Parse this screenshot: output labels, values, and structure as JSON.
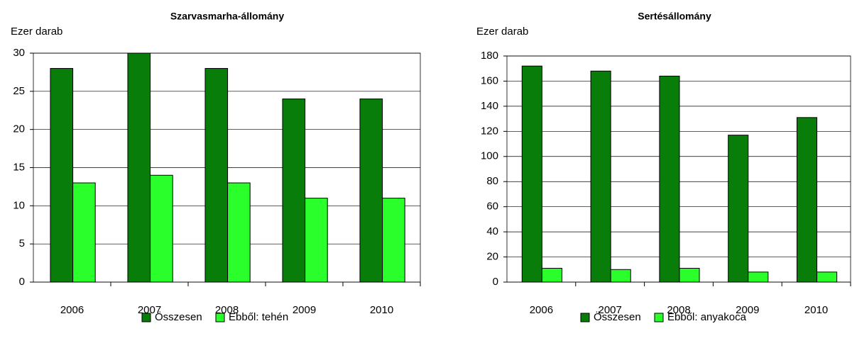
{
  "chart_data": [
    {
      "type": "bar",
      "title": "Szarvasmarha-állomány",
      "y_label": "Ezer darab",
      "categories": [
        "2006",
        "2007",
        "2008",
        "2009",
        "2010"
      ],
      "series": [
        {
          "name": "Összesen",
          "color": "#097d09",
          "values": [
            28,
            30,
            28,
            24,
            24
          ]
        },
        {
          "name": "Ebből: tehén",
          "color": "#2bff2b",
          "values": [
            13,
            14,
            13,
            11,
            11
          ]
        }
      ],
      "ylim": [
        0,
        30
      ],
      "yticks": [
        0,
        5,
        10,
        15,
        20,
        25,
        30
      ],
      "grid": true
    },
    {
      "type": "bar",
      "title": "Sertésállomány",
      "y_label": "Ezer darab",
      "categories": [
        "2006",
        "2007",
        "2008",
        "2009",
        "2010"
      ],
      "series": [
        {
          "name": "Összesen",
          "color": "#097d09",
          "values": [
            172,
            168,
            164,
            117,
            131
          ]
        },
        {
          "name": "Ebből: anyakoca",
          "color": "#2bff2b",
          "values": [
            11,
            10,
            11,
            8,
            8
          ]
        }
      ],
      "ylim": [
        0,
        180
      ],
      "yticks": [
        0,
        20,
        40,
        60,
        80,
        100,
        120,
        140,
        160,
        180
      ],
      "grid": true
    }
  ]
}
